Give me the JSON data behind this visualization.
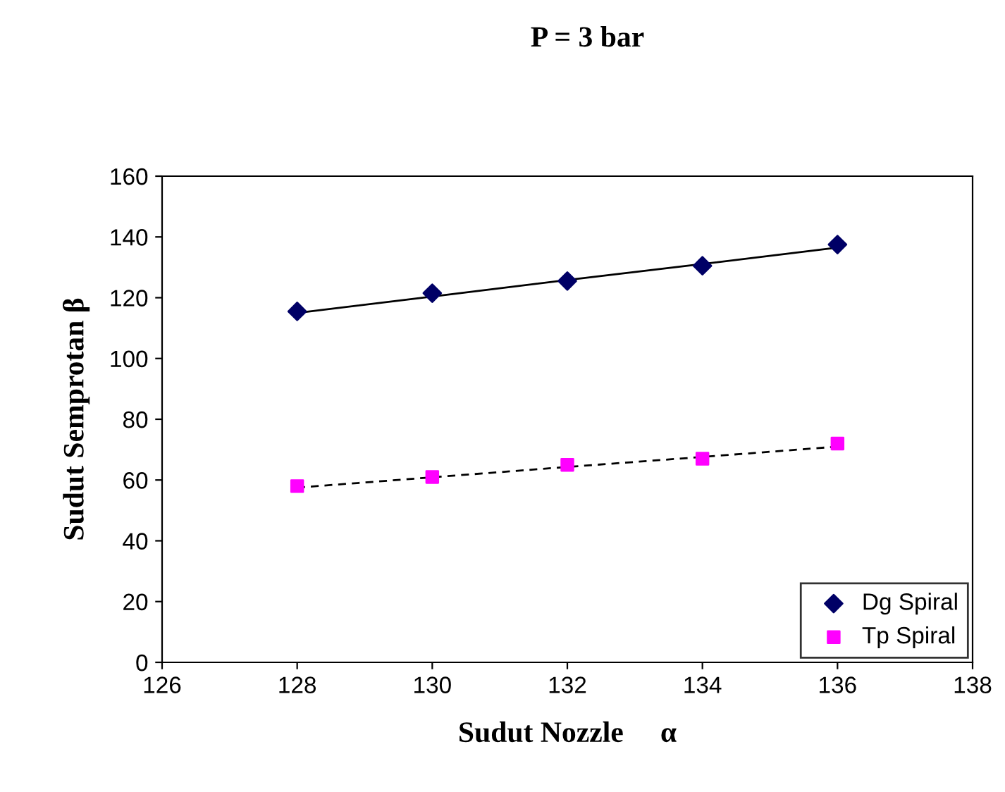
{
  "chart_data": {
    "type": "scatter",
    "title": "P = 3 bar",
    "xlabel": "Sudut Nozzle     α",
    "ylabel": "Sudut Semprotan β",
    "x": [
      128,
      130,
      132,
      134,
      136
    ],
    "series": [
      {
        "name": "Dg Spiral",
        "color": "#000066",
        "marker": "diamond",
        "values": [
          115.5,
          121.5,
          125.5,
          130.5,
          137.5
        ]
      },
      {
        "name": "Tp Spiral",
        "color": "#ff00ff",
        "marker": "square",
        "values": [
          58,
          61,
          65,
          67,
          72
        ]
      },
      {
        "type": "line",
        "color": "#000000",
        "line_style": "solid",
        "values": [
          115,
          120.4,
          125.8,
          131.1,
          136.5
        ]
      },
      {
        "type": "line",
        "color": "#000000",
        "line_style": "dashed",
        "values": [
          57.5,
          60.9,
          64.3,
          67.6,
          71
        ]
      }
    ],
    "xlim": [
      126,
      138
    ],
    "xticks": [
      126,
      128,
      130,
      132,
      134,
      136,
      138
    ],
    "ylim": [
      0,
      160
    ],
    "yticks": [
      0,
      20,
      40,
      60,
      80,
      100,
      120,
      140,
      160
    ],
    "grid": false,
    "legend": "bottom right"
  }
}
